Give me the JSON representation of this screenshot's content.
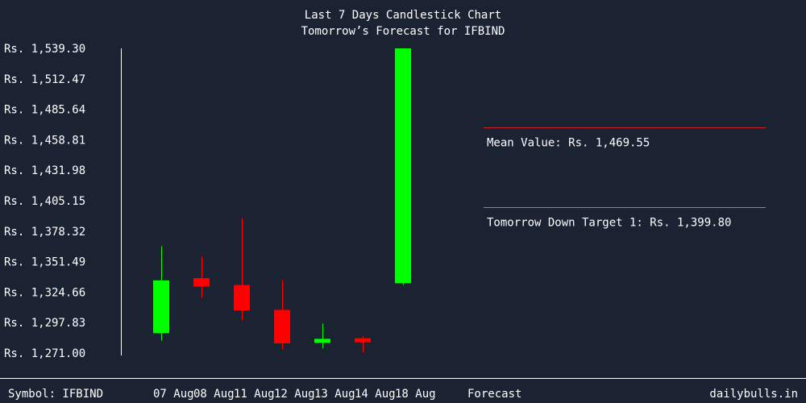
{
  "chart_data": {
    "type": "candlestick",
    "title": "Last 7 Days Candlestick Chart",
    "subtitle": "Tomorrow’s Forecast for IFBIND",
    "currency_prefix": "Rs.",
    "ylim": [
      1271.0,
      1539.3
    ],
    "y_ticks": [
      "Rs. 1,539.30",
      "Rs. 1,512.47",
      "Rs. 1,485.64",
      "Rs. 1,458.81",
      "Rs. 1,431.98",
      "Rs. 1,405.15",
      "Rs. 1,378.32",
      "Rs. 1,351.49",
      "Rs. 1,324.66",
      "Rs. 1,297.83",
      "Rs. 1,271.00"
    ],
    "candles": [
      {
        "label": "07 Aug",
        "open": 1288.5,
        "close": 1335.0,
        "high": 1365.0,
        "low": 1282.0,
        "direction": "up"
      },
      {
        "label": "08 Aug",
        "open": 1337.0,
        "close": 1329.5,
        "high": 1356.0,
        "low": 1319.5,
        "direction": "down"
      },
      {
        "label": "11 Aug",
        "open": 1331.0,
        "close": 1308.5,
        "high": 1390.0,
        "low": 1299.5,
        "direction": "down"
      },
      {
        "label": "12 Aug",
        "open": 1309.0,
        "close": 1279.5,
        "high": 1335.5,
        "low": 1274.0,
        "direction": "down"
      },
      {
        "label": "13 Aug",
        "open": 1280.0,
        "close": 1283.5,
        "high": 1297.0,
        "low": 1275.0,
        "direction": "up"
      },
      {
        "label": "14 Aug",
        "open": 1284.0,
        "close": 1280.5,
        "high": 1286.0,
        "low": 1271.5,
        "direction": "down"
      },
      {
        "label": "18 Aug",
        "open": 1332.5,
        "close": 1539.3,
        "high": 1539.3,
        "low": 1331.0,
        "direction": "up"
      }
    ],
    "forecast_label": "Forecast",
    "reference_lines": [
      {
        "label": "Mean Value: Rs. 1,469.55",
        "value": 1469.55,
        "color": "#cc2222"
      },
      {
        "label": "Tomorrow Down Target 1: Rs. 1,399.80",
        "value": 1399.8,
        "color": "#22cc22"
      }
    ],
    "colors": {
      "up": "#00ff00",
      "down": "#ff0000",
      "background": "#1b2232",
      "text": "#ffffff"
    }
  },
  "footer": {
    "symbol": "Symbol: IFBIND",
    "brand": "dailybulls.in"
  }
}
